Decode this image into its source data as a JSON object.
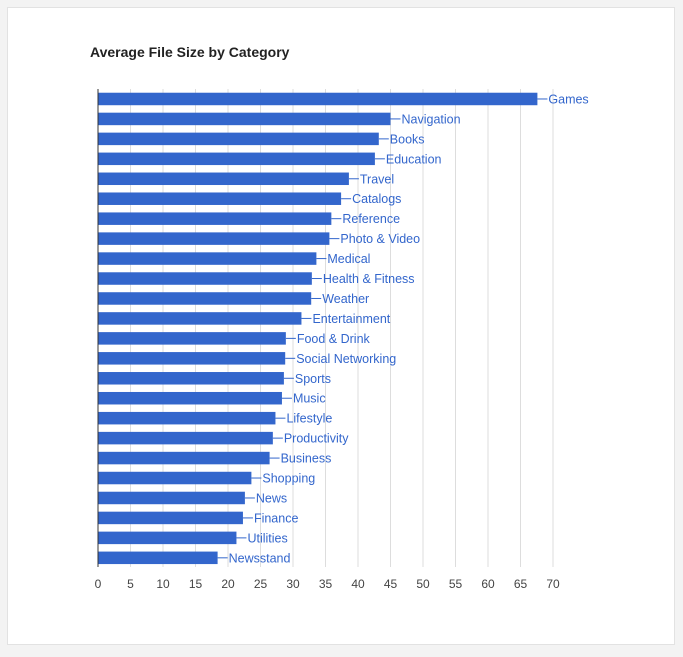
{
  "chart_data": {
    "type": "bar",
    "orientation": "horizontal",
    "title": "Average File Size by Category",
    "xlabel": "",
    "ylabel": "",
    "xlim": [
      0,
      75
    ],
    "xticks": [
      0,
      5,
      10,
      15,
      20,
      25,
      30,
      35,
      40,
      45,
      50,
      55,
      60,
      65,
      70
    ],
    "grid": true,
    "bar_color": "#3366cc",
    "categories": [
      "Games",
      "Navigation",
      "Books",
      "Education",
      "Travel",
      "Catalogs",
      "Reference",
      "Photo & Video",
      "Medical",
      "Health & Fitness",
      "Weather",
      "Entertainment",
      "Food & Drink",
      "Social Networking",
      "Sports",
      "Music",
      "Lifestyle",
      "Productivity",
      "Business",
      "Shopping",
      "News",
      "Finance",
      "Utilities",
      "Newsstand"
    ],
    "values": [
      67.6,
      45.0,
      43.2,
      42.6,
      38.6,
      37.4,
      35.9,
      35.6,
      33.6,
      32.9,
      32.8,
      31.3,
      28.9,
      28.8,
      28.6,
      28.3,
      27.3,
      26.9,
      26.4,
      23.6,
      22.6,
      22.3,
      21.3,
      18.4
    ]
  }
}
